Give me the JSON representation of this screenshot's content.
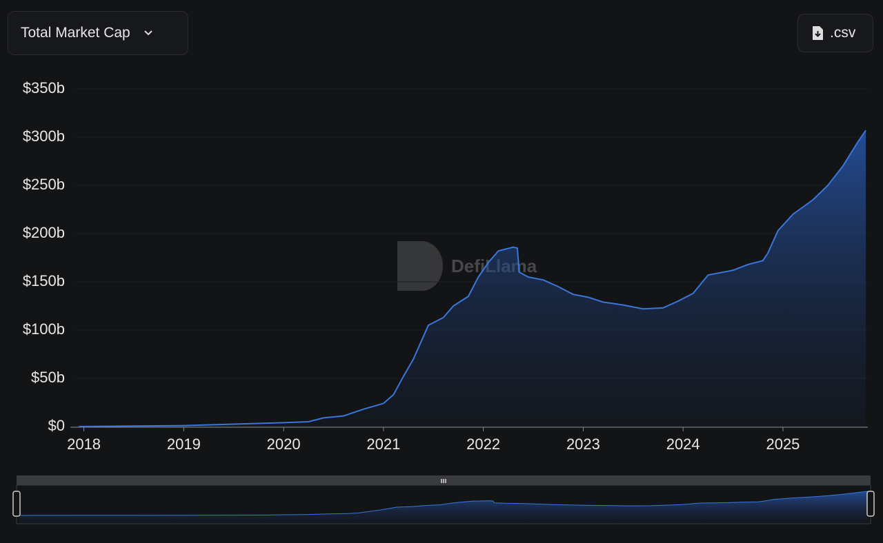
{
  "dropdown_label": "Total Market Cap",
  "download_label": ".csv",
  "watermark": "DefiLlama",
  "chart_data": {
    "type": "area",
    "x": [
      2017.95,
      2018.5,
      2019,
      2019.5,
      2020,
      2020.25,
      2020.4,
      2020.6,
      2020.8,
      2021,
      2021.1,
      2021.2,
      2021.3,
      2021.45,
      2021.6,
      2021.7,
      2021.85,
      2021.95,
      2022.05,
      2022.15,
      2022.3,
      2022.34,
      2022.36,
      2022.45,
      2022.6,
      2022.75,
      2022.9,
      2023.05,
      2023.2,
      2023.4,
      2023.6,
      2023.8,
      2023.95,
      2024.1,
      2024.25,
      2024.5,
      2024.65,
      2024.8,
      2024.85,
      2024.95,
      2025.1,
      2025.3,
      2025.45,
      2025.6,
      2025.75,
      2025.83
    ],
    "values": [
      0,
      0.5,
      1,
      2.5,
      4,
      5,
      9,
      11,
      18,
      24,
      33,
      52,
      70,
      105,
      113,
      125,
      135,
      155,
      170,
      182,
      186,
      185,
      160,
      155,
      152,
      145,
      137,
      134,
      129,
      126,
      122,
      123,
      130,
      138,
      157,
      162,
      168,
      172,
      180,
      203,
      220,
      235,
      250,
      270,
      295,
      307
    ],
    "color": "#3b76dc",
    "xlim": [
      2017.92,
      2025.85
    ],
    "xticks": [
      2018,
      2019,
      2020,
      2021,
      2022,
      2023,
      2024,
      2025
    ],
    "ylim": [
      0,
      350
    ],
    "yticks": [
      {
        "value": 0,
        "label": "$0"
      },
      {
        "value": 50,
        "label": "$50b"
      },
      {
        "value": 100,
        "label": "$100b"
      },
      {
        "value": 150,
        "label": "$150b"
      },
      {
        "value": 200,
        "label": "$200b"
      },
      {
        "value": 250,
        "label": "$250b"
      },
      {
        "value": 300,
        "label": "$300b"
      },
      {
        "value": 350,
        "label": "$350b"
      }
    ],
    "grid": true
  }
}
